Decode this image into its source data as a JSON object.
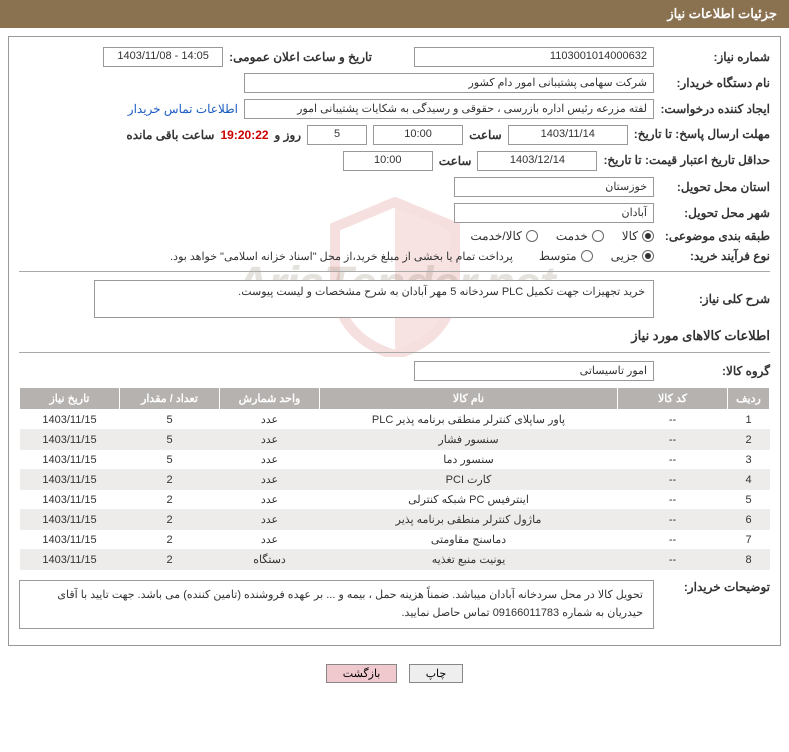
{
  "header": {
    "title": "جزئیات اطلاعات نیاز"
  },
  "info": {
    "needNo": {
      "label": "شماره نیاز:",
      "value": "1103001014000632"
    },
    "announce": {
      "label": "تاریخ و ساعت اعلان عمومی:",
      "value": "1403/11/08 - 14:05"
    },
    "buyerOrg": {
      "label": "نام دستگاه خریدار:",
      "value": "شرکت سهامی پشتیبانی امور دام کشور"
    },
    "requester": {
      "label": "ایجاد کننده درخواست:",
      "value": "لفته مزرعه رئیس اداره بازرسی ، حقوقی و رسیدگی به شکایات  پشتیبانی امور"
    },
    "contactLink": "اطلاعات تماس خریدار",
    "deadline": {
      "label": "مهلت ارسال پاسخ: تا تاریخ:",
      "date": "1403/11/14",
      "timeLabel": "ساعت",
      "time": "10:00",
      "daysValue": "5",
      "daysSuffix": "روز و",
      "countdown": "19:20:22",
      "remaining": "ساعت باقی مانده"
    },
    "minValid": {
      "label": "حداقل تاریخ اعتبار قیمت: تا تاریخ:",
      "date": "1403/12/14",
      "timeLabel": "ساعت",
      "time": "10:00"
    },
    "province": {
      "label": "استان محل تحویل:",
      "value": "خوزستان"
    },
    "city": {
      "label": "شهر محل تحویل:",
      "value": "آبادان"
    },
    "subjectCat": {
      "label": "طبقه بندی موضوعی:",
      "opts": {
        "a": "کالا",
        "b": "خدمت",
        "c": "کالا/خدمت"
      }
    },
    "procType": {
      "label": "نوع فرآیند خرید:",
      "opts": {
        "a": "جزیی",
        "b": "متوسط"
      },
      "note": "پرداخت تمام یا بخشی از مبلغ خرید،از محل \"اسناد خزانه اسلامی\" خواهد بود."
    },
    "desc": {
      "label": "شرح کلی نیاز:",
      "value": "خرید تجهیزات جهت تکمیل PLC سردخانه 5 مهر آبادان به شرح مشخصات و لیست پیوست."
    }
  },
  "items": {
    "sectionTitle": "اطلاعات کالاهای مورد نیاز",
    "group": {
      "label": "گروه کالا:",
      "value": "امور تاسیساتی"
    },
    "cols": {
      "row": "ردیف",
      "code": "کد کالا",
      "name": "نام کالا",
      "unit": "واحد شمارش",
      "qty": "تعداد / مقدار",
      "date": "تاریخ نیاز"
    },
    "rows": [
      {
        "r": "1",
        "code": "--",
        "name": "پاور ساپلای کنترلر منطقی برنامه پذیر PLC",
        "unit": "عدد",
        "qty": "5",
        "date": "1403/11/15"
      },
      {
        "r": "2",
        "code": "--",
        "name": "سنسور فشار",
        "unit": "عدد",
        "qty": "5",
        "date": "1403/11/15"
      },
      {
        "r": "3",
        "code": "--",
        "name": "سنسور دما",
        "unit": "عدد",
        "qty": "5",
        "date": "1403/11/15"
      },
      {
        "r": "4",
        "code": "--",
        "name": "کارت PCI",
        "unit": "عدد",
        "qty": "2",
        "date": "1403/11/15"
      },
      {
        "r": "5",
        "code": "--",
        "name": "اینترفیس PC شبکه کنترلی",
        "unit": "عدد",
        "qty": "2",
        "date": "1403/11/15"
      },
      {
        "r": "6",
        "code": "--",
        "name": "ماژول کنترلر منطقی برنامه پذیر",
        "unit": "عدد",
        "qty": "2",
        "date": "1403/11/15"
      },
      {
        "r": "7",
        "code": "--",
        "name": "دماسنج مقاومتی",
        "unit": "عدد",
        "qty": "2",
        "date": "1403/11/15"
      },
      {
        "r": "8",
        "code": "--",
        "name": "یونیت منبع تغذیه",
        "unit": "دستگاه",
        "qty": "2",
        "date": "1403/11/15"
      }
    ]
  },
  "buyerNotes": {
    "label": "توضیحات خریدار:",
    "value": "تحویل کالا در محل سردخانه آبادان میباشد. ضمناً هزینه حمل ، بیمه و ... بر عهده فروشنده (تامین کننده) می باشد. جهت تایید با آقای حیدریان به شماره 09166011783 تماس حاصل نمایید."
  },
  "actions": {
    "print": "چاپ",
    "back": "بازگشت"
  },
  "watermarkText": "AriaTender.net",
  "colors": {
    "header": "#8a7150",
    "link": "#1a5cc2",
    "countdown": "#c00",
    "thBg": "#b5b2b0"
  }
}
